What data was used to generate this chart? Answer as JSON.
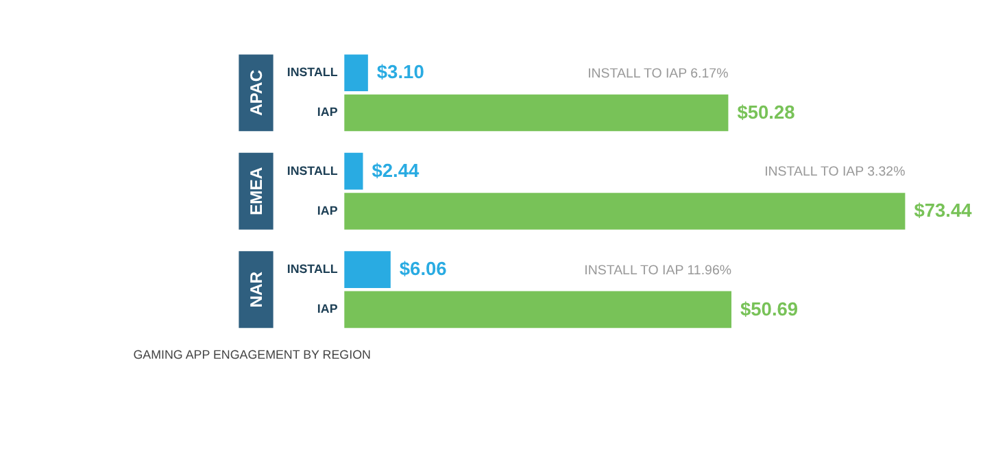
{
  "chart_data": {
    "type": "bar",
    "orientation": "horizontal",
    "title": "GAMING APP ENGAGEMENT BY REGION",
    "categories": [
      "APAC",
      "EMEA",
      "NAR"
    ],
    "series": [
      {
        "name": "INSTALL",
        "color": "#29abe2",
        "values": [
          3.1,
          2.44,
          6.06
        ],
        "value_labels": [
          "$3.10",
          "$2.44",
          "$6.06"
        ]
      },
      {
        "name": "IAP",
        "color": "#78c258",
        "values": [
          50.28,
          73.44,
          50.69
        ],
        "value_labels": [
          "$50.28",
          "$73.44",
          "$50.69"
        ]
      }
    ],
    "annotations": [
      "INSTALL TO IAP 6.17%",
      "INSTALL TO IAP 3.32%",
      "INSTALL TO IAP 11.96%"
    ]
  }
}
